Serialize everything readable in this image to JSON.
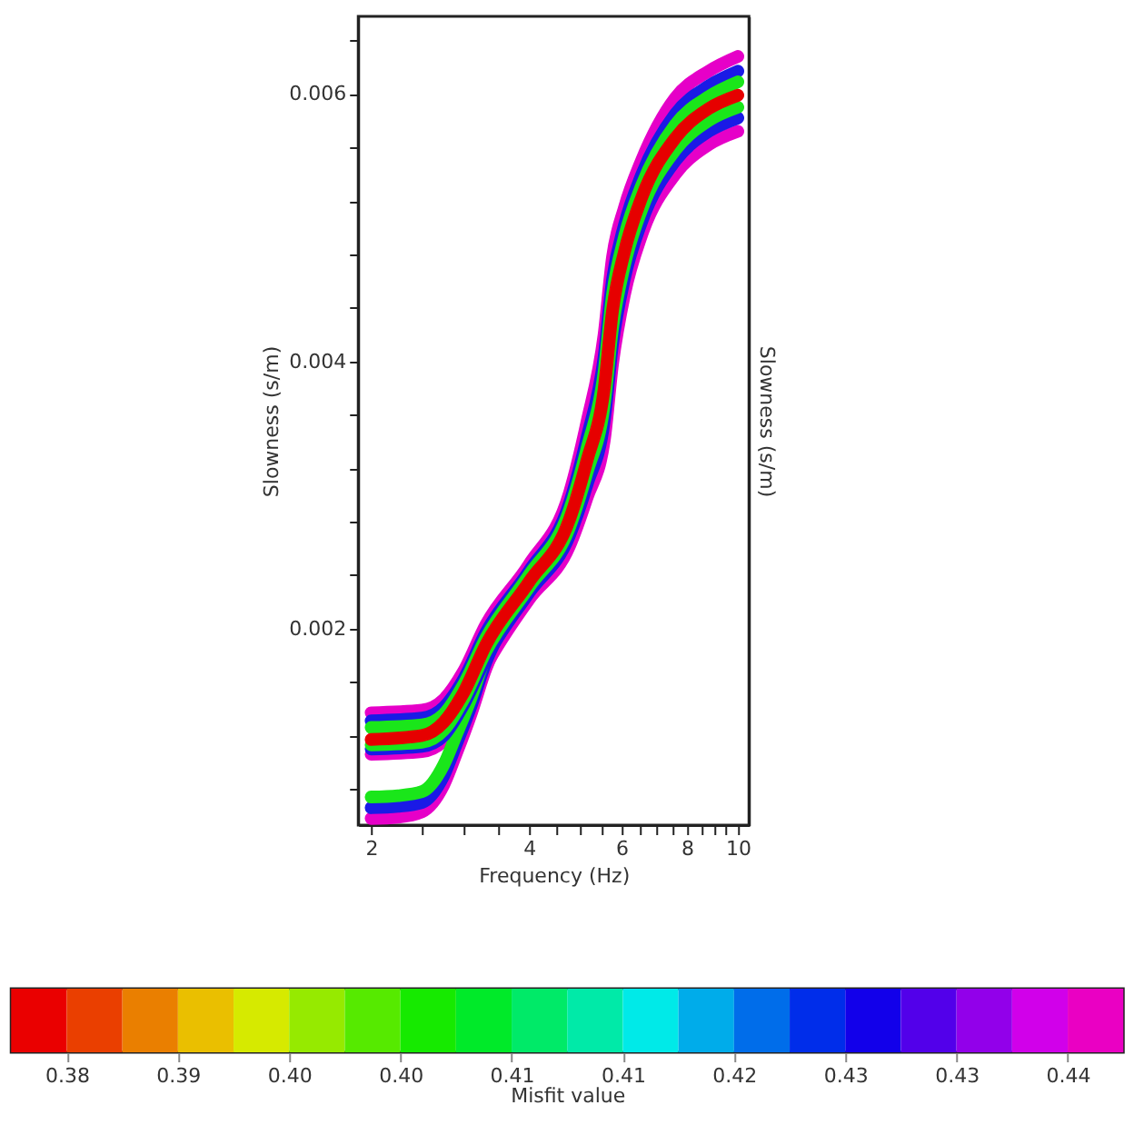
{
  "chart_data": {
    "type": "line",
    "xlabel": "Frequency (Hz)",
    "ylabel": "Slowness (s/m)",
    "y2label": "Slowness (s/m)",
    "clabel": "Misfit value",
    "log": "x",
    "grid": false,
    "line_style": "solid",
    "xlim": [
      1.89,
      10.5
    ],
    "ylim": [
      0.00053,
      0.00658
    ],
    "xticks": [
      2,
      {
        "value": 2.5,
        "label": null
      },
      {
        "value": 3,
        "label": null
      },
      {
        "value": 3.5,
        "label": null
      },
      4,
      {
        "value": 4.5,
        "label": null
      },
      {
        "value": 5,
        "label": null
      },
      {
        "value": 5.5,
        "label": null
      },
      6,
      {
        "value": 6.5,
        "label": null
      },
      {
        "value": 7,
        "label": null
      },
      {
        "value": 7.5,
        "label": null
      },
      8,
      {
        "value": 8.5,
        "label": null
      },
      {
        "value": 9,
        "label": null
      },
      {
        "value": 9.5,
        "label": null
      },
      10
    ],
    "yticks": [
      {
        "value": 0.0008,
        "label": null
      },
      {
        "value": 0.0012,
        "label": null
      },
      {
        "value": 0.0016,
        "label": null
      },
      0.002,
      {
        "value": 0.0024,
        "label": null
      },
      {
        "value": 0.0028,
        "label": null
      },
      {
        "value": 0.0032,
        "label": null
      },
      {
        "value": 0.0036,
        "label": null
      },
      0.004,
      {
        "value": 0.0044,
        "label": null
      },
      {
        "value": 0.0048,
        "label": null
      },
      {
        "value": 0.0052,
        "label": null
      },
      {
        "value": 0.0056,
        "label": null
      },
      0.006,
      {
        "value": 0.0064,
        "label": null
      }
    ],
    "clim": [
      0.3818,
      0.4398
    ],
    "cticks": [
      {
        "value": 0.3847,
        "label": "0.38"
      },
      {
        "value": 0.3905,
        "label": "0.39"
      },
      {
        "value": 0.3963,
        "label": "0.40"
      },
      {
        "value": 0.4021,
        "label": "0.40"
      },
      {
        "value": 0.4079,
        "label": "0.41"
      },
      {
        "value": 0.4137,
        "label": "0.41"
      },
      {
        "value": 0.4195,
        "label": "0.42"
      },
      {
        "value": 0.4253,
        "label": "0.43"
      },
      {
        "value": 0.4311,
        "label": "0.43"
      },
      {
        "value": 0.4369,
        "label": "0.44"
      }
    ],
    "x": [
      2,
      2.5,
      2.75,
      3,
      3.31,
      4,
      4.78,
      5.16,
      5.56,
      5.77,
      6.08,
      6.55,
      7.6,
      8.8,
      10
    ],
    "series": [
      {
        "color": "#e600c8",
        "values": [
          0.00137,
          0.00139,
          0.00147,
          0.00168,
          0.00203,
          0.00248,
          0.00302,
          0.00355,
          0.0042,
          0.00478,
          0.00515,
          0.0055,
          0.00597,
          0.00617,
          0.00628
        ]
      },
      {
        "color": "#e600c8",
        "values": [
          0.00106,
          0.00108,
          0.00116,
          0.00138,
          0.00172,
          0.00222,
          0.00262,
          0.00298,
          0.0034,
          0.00398,
          0.0045,
          0.00494,
          0.0054,
          0.00562,
          0.00572
        ]
      },
      {
        "color": "#e600c8",
        "x": [
          2,
          2.25,
          2.5,
          2.75,
          2.91,
          3.1,
          3.31,
          3.6
        ],
        "values": [
          0.00058,
          0.00059,
          0.00063,
          0.00083,
          0.00107,
          0.00136,
          0.0017,
          0.002
        ]
      },
      {
        "color": "#1a1ae6",
        "x": [
          2,
          2.25,
          2.5,
          2.75,
          2.91,
          3.1,
          3.31,
          3.6
        ],
        "values": [
          0.00066,
          0.00067,
          0.0007,
          0.0009,
          0.00114,
          0.00142,
          0.00175,
          0.00204
        ]
      },
      {
        "color": "#1ae61a",
        "x": [
          2,
          2.25,
          2.5,
          2.75,
          2.91,
          3.1,
          3.31,
          3.6
        ],
        "values": [
          0.00074,
          0.00075,
          0.00078,
          0.00098,
          0.00121,
          0.00148,
          0.0018,
          0.00208
        ]
      },
      {
        "color": "#1a1ae6",
        "values": [
          0.00131,
          0.00133,
          0.00141,
          0.00162,
          0.00197,
          0.00243,
          0.00294,
          0.00343,
          0.00403,
          0.00461,
          0.00502,
          0.00539,
          0.00585,
          0.00606,
          0.00617
        ]
      },
      {
        "color": "#1a1ae6",
        "values": [
          0.0011,
          0.00112,
          0.0012,
          0.00143,
          0.00178,
          0.00227,
          0.0027,
          0.00308,
          0.00355,
          0.00413,
          0.00462,
          0.00504,
          0.0055,
          0.00572,
          0.00582
        ]
      },
      {
        "color": "#1ae61a",
        "values": [
          0.00126,
          0.00128,
          0.00136,
          0.00158,
          0.00193,
          0.0024,
          0.00289,
          0.00335,
          0.00392,
          0.0045,
          0.00493,
          0.00531,
          0.00577,
          0.00598,
          0.00609
        ]
      },
      {
        "color": "#1ae61a",
        "values": [
          0.00113,
          0.00115,
          0.00124,
          0.00147,
          0.00183,
          0.00231,
          0.00276,
          0.00317,
          0.00367,
          0.00425,
          0.00472,
          0.00513,
          0.00558,
          0.0058,
          0.0059
        ]
      },
      {
        "color": "#e60000",
        "values": [
          0.00117,
          0.0012,
          0.0013,
          0.00152,
          0.00188,
          0.00235,
          0.00282,
          0.00326,
          0.00379,
          0.00438,
          0.00482,
          0.00522,
          0.00567,
          0.00589,
          0.00599
        ]
      }
    ]
  }
}
